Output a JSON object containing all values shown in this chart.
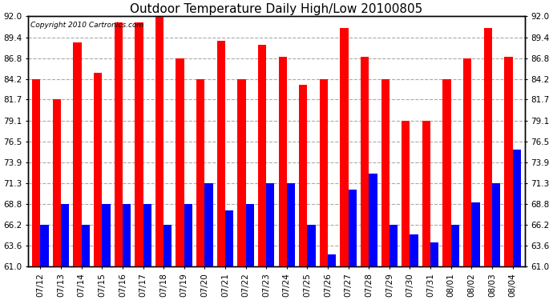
{
  "title": "Outdoor Temperature Daily High/Low 20100805",
  "copyright_text": "Copyright 2010 Cartronics.com",
  "dates": [
    "07/12",
    "07/13",
    "07/14",
    "07/15",
    "07/16",
    "07/17",
    "07/18",
    "07/19",
    "07/20",
    "07/21",
    "07/22",
    "07/23",
    "07/24",
    "07/25",
    "07/26",
    "07/27",
    "07/28",
    "07/29",
    "07/30",
    "07/31",
    "08/01",
    "08/02",
    "08/03",
    "08/04"
  ],
  "highs": [
    84.2,
    81.7,
    88.8,
    85.0,
    91.2,
    91.2,
    92.5,
    86.8,
    84.2,
    89.0,
    84.2,
    88.5,
    87.0,
    83.5,
    84.2,
    90.5,
    87.0,
    84.2,
    79.1,
    79.1,
    84.2,
    86.8,
    90.5,
    87.0
  ],
  "lows": [
    66.2,
    68.8,
    66.2,
    68.8,
    68.8,
    68.8,
    66.2,
    68.8,
    71.3,
    68.0,
    68.8,
    71.3,
    71.3,
    66.2,
    62.5,
    70.5,
    72.5,
    66.2,
    65.0,
    64.0,
    66.2,
    69.0,
    71.3,
    75.5
  ],
  "high_color": "#ff0000",
  "low_color": "#0000ff",
  "bg_color": "#ffffff",
  "grid_color": "#aaaaaa",
  "ylim_min": 61.0,
  "ylim_max": 92.0,
  "yticks": [
    61.0,
    63.6,
    66.2,
    68.8,
    71.3,
    73.9,
    76.5,
    79.1,
    81.7,
    84.2,
    86.8,
    89.4,
    92.0
  ],
  "bar_width": 0.4,
  "title_fontsize": 11,
  "tick_fontsize": 7.5,
  "copyright_fontsize": 6.5
}
